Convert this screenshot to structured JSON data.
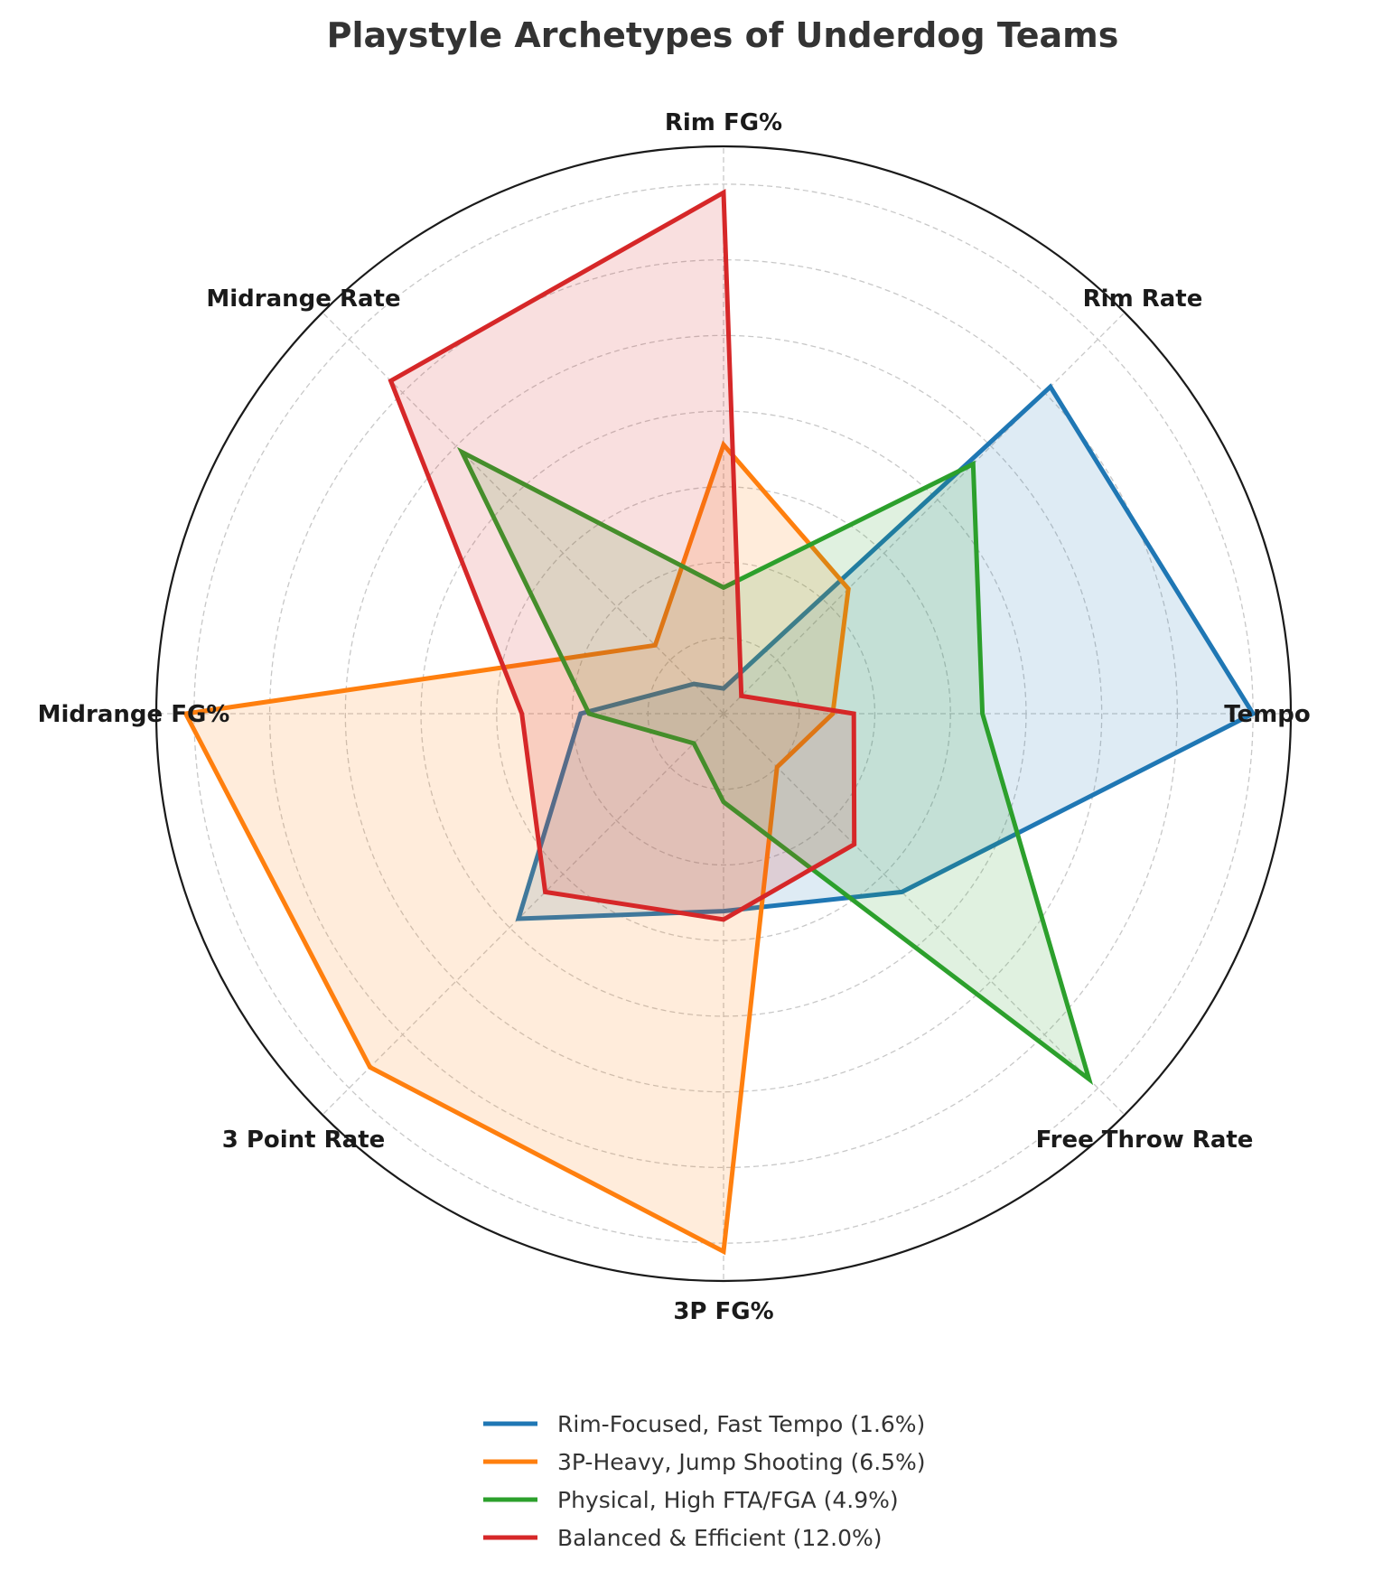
{
  "chart_data": {
    "type": "radar",
    "title": "Playstyle Archetypes of Underdog Teams",
    "axes": [
      "Tempo",
      "Rim Rate",
      "Rim FG%",
      "Midrange Rate",
      "Midrange FG%",
      "3 Point Rate",
      "3P FG%",
      "Free Throw Rate"
    ],
    "rlim": [
      0,
      6.75
    ],
    "rings": 7,
    "grid": true,
    "legend_position": "bottom-center",
    "series": [
      {
        "name": "Rim-Focused, Fast Tempo (1.6%)",
        "color": "#1f77b4",
        "values": [
          6.3,
          5.5,
          0.3,
          0.5,
          1.7,
          3.45,
          2.35,
          3.0
        ]
      },
      {
        "name": "3P-Heavy, Jump Shooting (6.5%)",
        "color": "#ff7f0e",
        "values": [
          1.3,
          2.1,
          3.2,
          1.15,
          6.4,
          5.95,
          6.4,
          0.9
        ]
      },
      {
        "name": "Physical, High FTA/FGA (4.9%)",
        "color": "#2ca02c",
        "values": [
          3.08,
          4.2,
          1.5,
          4.4,
          1.6,
          0.5,
          1.05,
          6.15
        ]
      },
      {
        "name": "Balanced & Efficient (12.0%)",
        "color": "#d62728",
        "values": [
          1.55,
          0.3,
          6.2,
          5.6,
          2.4,
          3.0,
          2.45,
          2.2
        ]
      }
    ]
  }
}
